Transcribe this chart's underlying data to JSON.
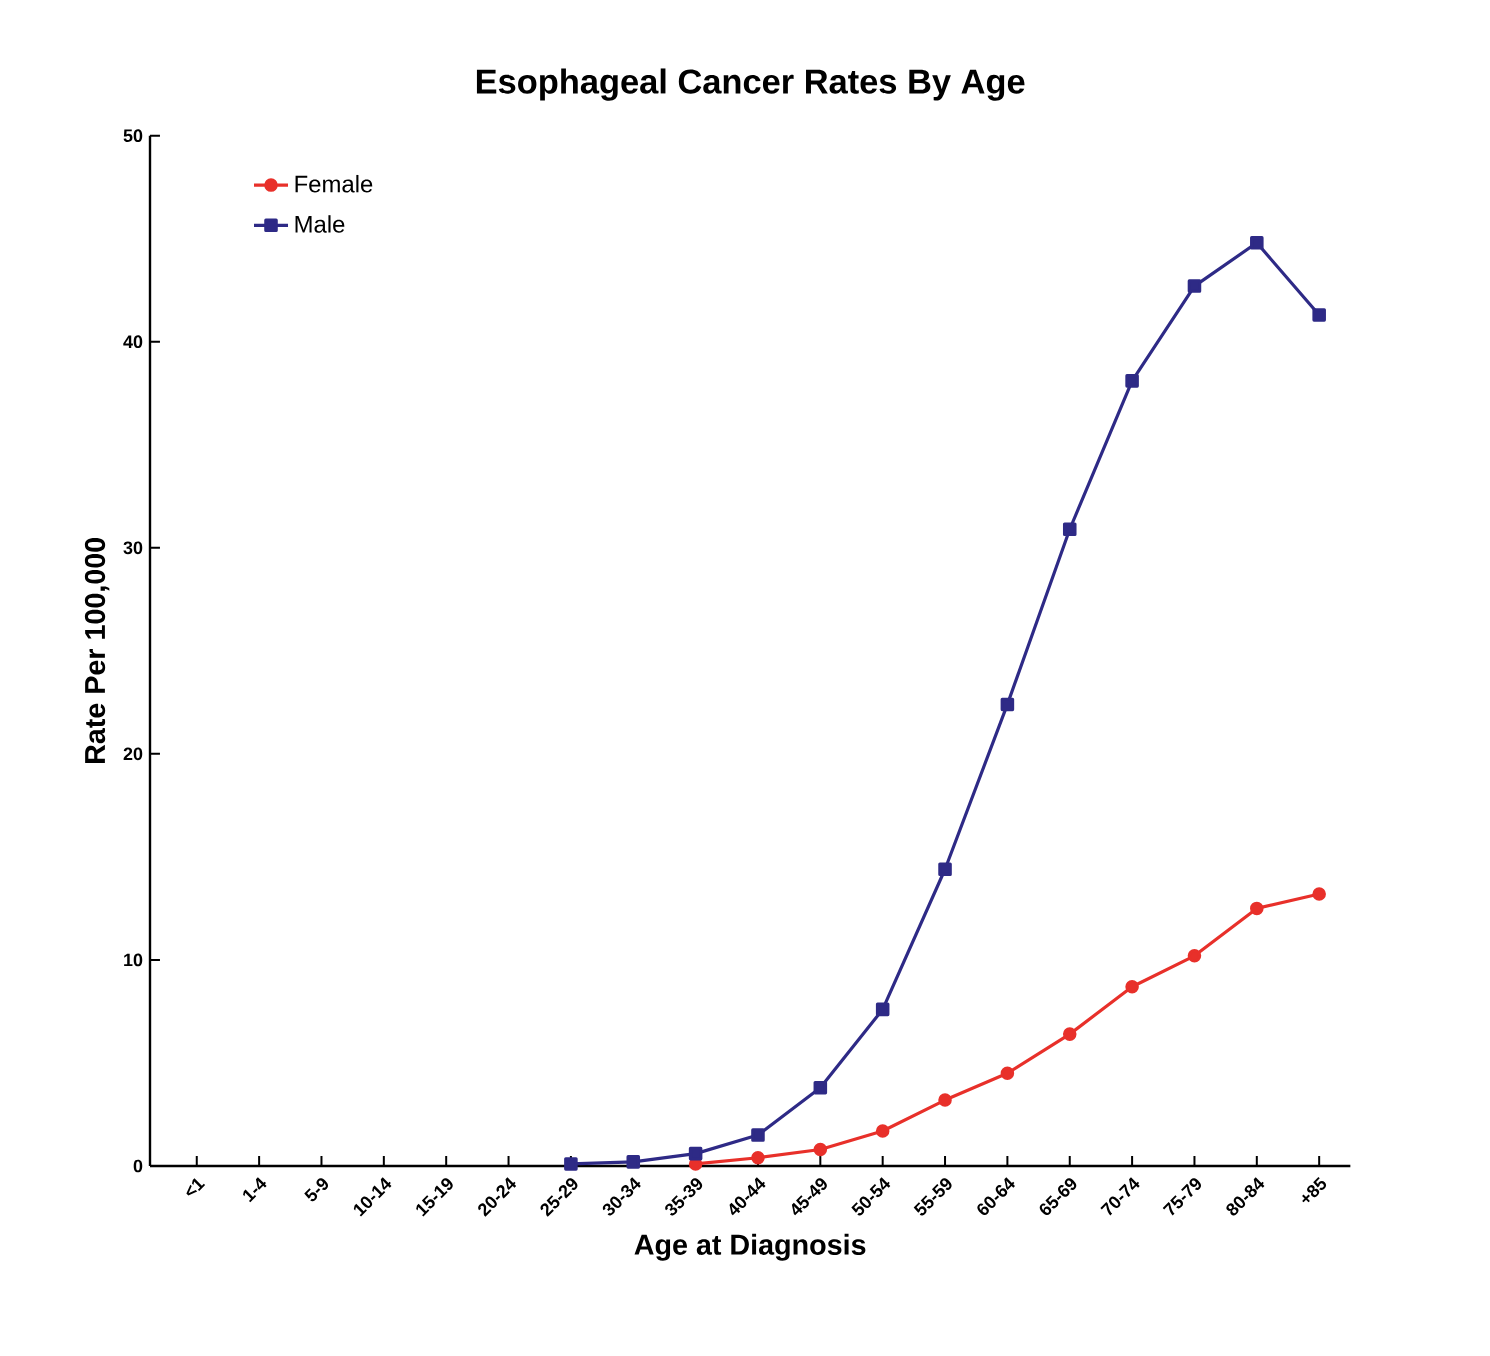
{
  "chart_data": {
    "type": "line",
    "title": "Esophageal Cancer Rates By Age",
    "xlabel": "Age at Diagnosis",
    "ylabel": "Rate Per 100,000",
    "categories": [
      "<1",
      "1-4",
      "5-9",
      "10-14",
      "15-19",
      "20-24",
      "25-29",
      "30-34",
      "35-39",
      "40-44",
      "45-49",
      "50-54",
      "55-59",
      "60-64",
      "65-69",
      "70-74",
      "75-79",
      "80-84",
      "+85"
    ],
    "series": [
      {
        "name": "Female",
        "color": "#e8302a",
        "marker": "circle",
        "values": [
          null,
          null,
          null,
          null,
          null,
          null,
          null,
          null,
          0.1,
          0.4,
          0.8,
          1.7,
          3.2,
          4.5,
          6.4,
          8.7,
          10.2,
          12.5,
          13.2
        ]
      },
      {
        "name": "Male",
        "color": "#2e2a86",
        "marker": "square",
        "values": [
          null,
          null,
          null,
          null,
          null,
          null,
          0.1,
          0.2,
          0.6,
          1.5,
          3.8,
          7.6,
          14.4,
          22.4,
          30.9,
          38.1,
          42.7,
          44.8,
          41.3
        ]
      }
    ],
    "ylim": [
      0,
      50
    ],
    "yticks": [
      0,
      10,
      20,
      30,
      40,
      50
    ],
    "legend": "top left",
    "line_style": "solid"
  }
}
